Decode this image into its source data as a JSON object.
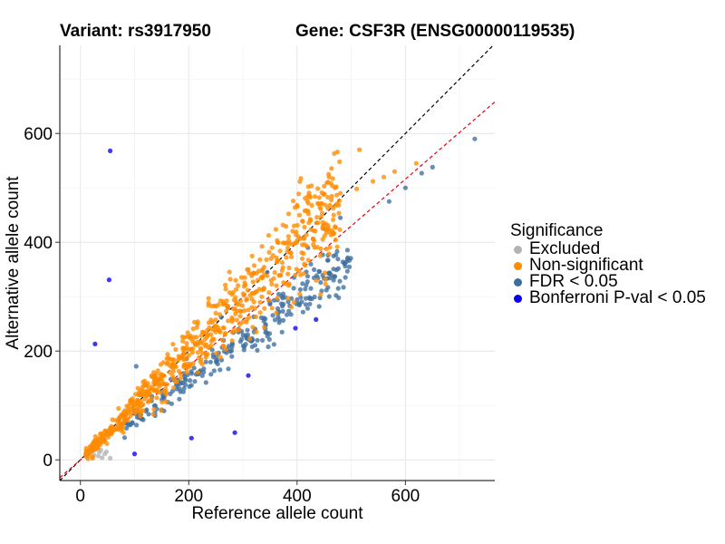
{
  "titles": {
    "variant": "Variant: rs3917950",
    "gene": "Gene: CSF3R (ENSG00000119535)"
  },
  "chart_data": {
    "type": "scatter",
    "xlabel": "Reference allele count",
    "ylabel": "Alternative allele count",
    "xlim": [
      -38,
      765
    ],
    "ylim": [
      -38,
      762
    ],
    "xticks": [
      0,
      200,
      400,
      600
    ],
    "yticks": [
      0,
      200,
      400,
      600
    ],
    "grid": true,
    "reference_lines": [
      {
        "name": "y = x",
        "slope": 1.0,
        "color": "#000000"
      },
      {
        "name": "fitted",
        "slope": 0.86,
        "color": "#E8000B"
      }
    ],
    "legend": {
      "title": "Significance",
      "position": "right",
      "entries": [
        {
          "label": "Excluded",
          "color": "#B3B3B3"
        },
        {
          "label": "Non-significant",
          "color": "#FF8C00"
        },
        {
          "label": "FDR < 0.05",
          "color": "#3C6E9F"
        },
        {
          "label": "Bonferroni P-val < 0.05",
          "color": "#0A00F0"
        }
      ]
    },
    "series": [
      {
        "name": "Excluded",
        "color": "#B3B3B3",
        "points": [
          [
            15,
            12
          ],
          [
            20,
            17
          ],
          [
            25,
            9
          ],
          [
            30,
            20
          ],
          [
            35,
            14
          ],
          [
            40,
            4
          ],
          [
            45,
            11
          ],
          [
            55,
            3
          ],
          [
            12,
            6
          ],
          [
            28,
            25
          ],
          [
            33,
            7
          ],
          [
            22,
            22
          ],
          [
            38,
            18
          ],
          [
            48,
            15
          ],
          [
            18,
            14
          ],
          [
            26,
            18
          ]
        ]
      },
      {
        "name": "Bonferroni P-val < 0.05",
        "color": "#0A00F0",
        "points": [
          [
            55,
            568
          ],
          [
            53,
            331
          ],
          [
            27,
            213
          ],
          [
            100,
            11
          ],
          [
            205,
            40
          ],
          [
            285,
            50
          ],
          [
            310,
            155
          ],
          [
            397,
            242
          ],
          [
            435,
            258
          ]
        ]
      },
      {
        "name": "Non-significant",
        "color": "#FF8C00",
        "generated": true,
        "count": 700,
        "points": [
          [
            515,
            570
          ],
          [
            620,
            545
          ],
          [
            580,
            530
          ],
          [
            540,
            512
          ],
          [
            420,
            485
          ],
          [
            470,
            500
          ],
          [
            400,
            468
          ],
          [
            510,
            498
          ],
          [
            480,
            490
          ],
          [
            560,
            520
          ]
        ]
      },
      {
        "name": "FDR < 0.05",
        "color": "#3C6E9F",
        "generated": true,
        "count": 260,
        "points": [
          [
            728,
            590
          ],
          [
            650,
            538
          ],
          [
            630,
            527
          ],
          [
            600,
            500
          ],
          [
            570,
            475
          ],
          [
            480,
            445
          ],
          [
            450,
            425
          ],
          [
            420,
            390
          ],
          [
            345,
            345
          ],
          [
            320,
            263
          ],
          [
            260,
            262
          ],
          [
            196,
            186
          ],
          [
            205,
            137
          ],
          [
            150,
            92
          ],
          [
            103,
            172
          ]
        ]
      }
    ]
  }
}
